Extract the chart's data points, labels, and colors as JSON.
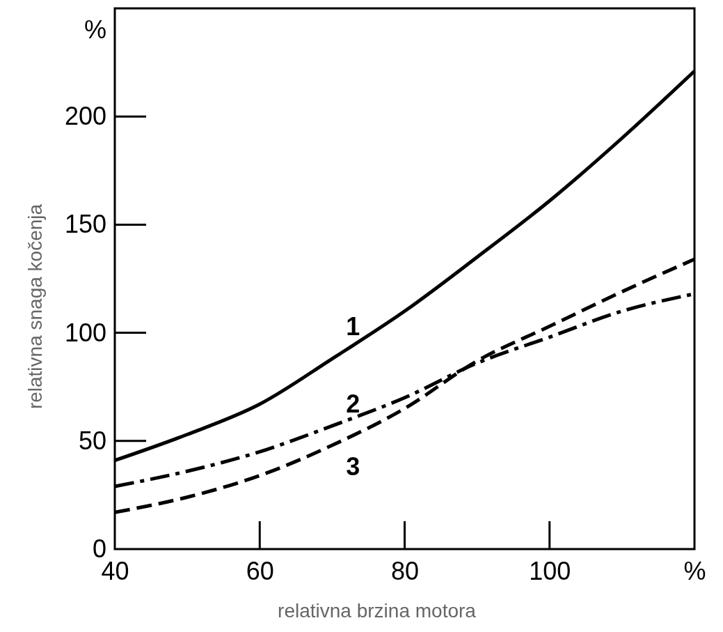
{
  "chart_data": {
    "type": "line",
    "xlabel": "relativna brzina motora",
    "ylabel": "relativna snaga kočenja",
    "x": [
      40,
      50,
      60,
      70,
      80,
      90,
      100,
      110,
      120
    ],
    "series": [
      {
        "name": "1",
        "color": "#000000",
        "line_style": "solid",
        "values": [
          41,
          53,
          67,
          88,
          110,
          135,
          161,
          190,
          221
        ]
      },
      {
        "name": "2",
        "color": "#000000",
        "line_style": "dashdot",
        "values": [
          29,
          36,
          45,
          57,
          70,
          86,
          98,
          110,
          118
        ]
      },
      {
        "name": "3",
        "color": "#000000",
        "line_style": "dashed",
        "values": [
          17,
          24,
          34,
          48,
          65,
          87,
          103,
          119,
          134
        ]
      }
    ],
    "xlim": [
      40,
      120
    ],
    "xticks": [
      40,
      60,
      80,
      100,
      {
        "value": 120,
        "label": "%"
      }
    ],
    "ylim": [
      0,
      250
    ],
    "yticks": [
      0,
      50,
      100,
      150,
      200,
      {
        "value": 240,
        "label": "%"
      }
    ],
    "grid": false
  }
}
